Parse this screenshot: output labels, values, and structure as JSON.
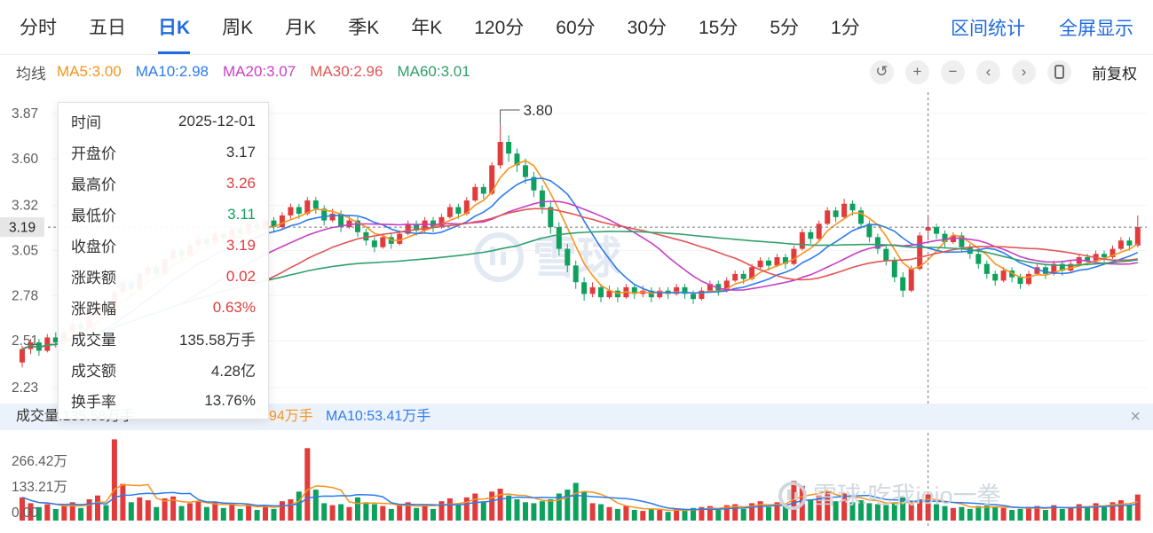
{
  "accent": "#1f6be0",
  "toolbar": {
    "tabs": [
      {
        "id": "timeline",
        "label": "分时",
        "active": false
      },
      {
        "id": "five-day",
        "label": "五日",
        "active": false
      },
      {
        "id": "daily-k",
        "label": "日K",
        "active": true
      },
      {
        "id": "weekly-k",
        "label": "周K",
        "active": false
      },
      {
        "id": "monthly-k",
        "label": "月K",
        "active": false
      },
      {
        "id": "quarterly-k",
        "label": "季K",
        "active": false
      },
      {
        "id": "yearly-k",
        "label": "年K",
        "active": false
      },
      {
        "id": "120min",
        "label": "120分",
        "active": false
      },
      {
        "id": "60min",
        "label": "60分",
        "active": false
      },
      {
        "id": "30min",
        "label": "30分",
        "active": false
      },
      {
        "id": "15min",
        "label": "15分",
        "active": false
      },
      {
        "id": "5min",
        "label": "5分",
        "active": false
      },
      {
        "id": "1min",
        "label": "1分",
        "active": false
      }
    ],
    "links": [
      {
        "id": "range-stats",
        "label": "区间统计"
      },
      {
        "id": "fullscreen",
        "label": "全屏显示"
      }
    ]
  },
  "legend": {
    "title": "均线",
    "mas": [
      {
        "label": "MA5:3.00",
        "color": "#f7941d"
      },
      {
        "label": "MA10:2.98",
        "color": "#2c7bee"
      },
      {
        "label": "MA20:3.07",
        "color": "#c73ec7"
      },
      {
        "label": "MA30:2.96",
        "color": "#e05555"
      },
      {
        "label": "MA60:3.01",
        "color": "#2fa06a"
      }
    ],
    "icons": [
      {
        "name": "undo-icon",
        "glyph": "↺"
      },
      {
        "name": "zoom-in-icon",
        "glyph": "+"
      },
      {
        "name": "zoom-out-icon",
        "glyph": "−"
      },
      {
        "name": "scroll-left-icon",
        "glyph": "‹"
      },
      {
        "name": "scroll-right-icon",
        "glyph": "›"
      },
      {
        "name": "mobile-view-icon",
        "glyph": "phone"
      }
    ],
    "adjust_label": "前复权"
  },
  "tooltip": {
    "rows": [
      {
        "label": "时间",
        "value": "2025-12-01",
        "color": "#333333"
      },
      {
        "label": "开盘价",
        "value": "3.17",
        "color": "#333333"
      },
      {
        "label": "最高价",
        "value": "3.26",
        "color": "#e03b3b"
      },
      {
        "label": "最低价",
        "value": "3.11",
        "color": "#0ea15d"
      },
      {
        "label": "收盘价",
        "value": "3.19",
        "color": "#e03b3b"
      },
      {
        "label": "涨跌额",
        "value": "0.02",
        "color": "#e03b3b"
      },
      {
        "label": "涨跌幅",
        "value": "0.63%",
        "color": "#e03b3b"
      },
      {
        "label": "成交量",
        "value": "135.58万手",
        "color": "#333333"
      },
      {
        "label": "成交额",
        "value": "4.28亿",
        "color": "#333333"
      },
      {
        "label": "换手率",
        "value": "13.76%",
        "color": "#333333"
      }
    ]
  },
  "volume_header": {
    "volume_label": "成交量:135.58万手",
    "ma5_fragment": "94万手",
    "ma10_label": "MA10:53.41万手",
    "close_glyph": "×"
  },
  "watermarks": {
    "center": "雪球",
    "corner": "雪球:吃我ioio一拳"
  },
  "chart_data": {
    "type": "candlestick",
    "period": "日K",
    "adjust": "前复权",
    "colors": {
      "up": "#e23b3c",
      "down": "#0ea15d",
      "watermark_center": "#e3e9f3",
      "watermark_corner": "#cfd5de",
      "crosshair": "#777777",
      "axis_text": "#5c5c5c"
    },
    "y_axis": {
      "ticks": [
        3.87,
        3.6,
        3.32,
        3.05,
        2.78,
        2.51,
        2.23
      ],
      "crosshair_price": 3.19,
      "crosshair_label": "3.19"
    },
    "volume_axis": {
      "ticks": [
        {
          "value": 266.42,
          "label": "266.42万"
        },
        {
          "value": 133.21,
          "label": "133.21万"
        },
        {
          "value": 0,
          "label": "0.00"
        }
      ],
      "unit": "万手"
    },
    "peak_annotation": {
      "index": 57,
      "price": 3.8,
      "label": "3.80"
    },
    "crosshair_index": 108,
    "selected_candle": {
      "date": "2025-12-01",
      "open": 3.17,
      "high": 3.26,
      "low": 3.11,
      "close": 3.19,
      "change": 0.02,
      "change_pct": "0.63%",
      "volume": "135.58万手",
      "amount": "4.28亿",
      "turnover": "13.76%"
    },
    "ma": {
      "windows": [
        5,
        10,
        20,
        30,
        60
      ],
      "colors": [
        "#f7941d",
        "#2c7bee",
        "#c73ec7",
        "#e05555",
        "#2fa06a"
      ],
      "current_labels": [
        "MA5:3.00",
        "MA10:2.98",
        "MA20:3.07",
        "MA30:2.96",
        "MA60:3.01"
      ]
    },
    "volume_ma": {
      "windows": [
        5,
        10
      ],
      "colors": [
        "#f7941d",
        "#2c7bee"
      ],
      "current_labels": [
        "94万手",
        "MA10:53.41万手"
      ]
    },
    "candle_format": [
      "open",
      "high",
      "low",
      "close",
      "volume_wanshou"
    ],
    "candles": [
      [
        2.38,
        2.48,
        2.35,
        2.46,
        120
      ],
      [
        2.46,
        2.52,
        2.43,
        2.5,
        90
      ],
      [
        2.5,
        2.52,
        2.42,
        2.45,
        70
      ],
      [
        2.45,
        2.55,
        2.44,
        2.53,
        85
      ],
      [
        2.53,
        2.56,
        2.47,
        2.5,
        60
      ],
      [
        2.5,
        2.58,
        2.49,
        2.56,
        75
      ],
      [
        2.56,
        2.63,
        2.54,
        2.61,
        95
      ],
      [
        2.61,
        2.63,
        2.55,
        2.58,
        65
      ],
      [
        2.58,
        2.68,
        2.57,
        2.66,
        110
      ],
      [
        2.66,
        2.75,
        2.64,
        2.72,
        130
      ],
      [
        2.72,
        2.74,
        2.66,
        2.69,
        80
      ],
      [
        2.69,
        2.82,
        2.68,
        2.8,
        420
      ],
      [
        2.8,
        2.89,
        2.78,
        2.86,
        190
      ],
      [
        2.86,
        2.88,
        2.79,
        2.82,
        95
      ],
      [
        2.82,
        2.93,
        2.81,
        2.91,
        120
      ],
      [
        2.91,
        2.98,
        2.89,
        2.95,
        105
      ],
      [
        2.95,
        2.97,
        2.88,
        2.91,
        70
      ],
      [
        2.91,
        3.02,
        2.9,
        3.0,
        115
      ],
      [
        3.0,
        3.08,
        2.98,
        3.05,
        125
      ],
      [
        3.05,
        3.07,
        2.99,
        3.02,
        75
      ],
      [
        3.02,
        3.1,
        3.01,
        3.08,
        90
      ],
      [
        3.08,
        3.15,
        3.06,
        3.12,
        100
      ],
      [
        3.12,
        3.14,
        3.06,
        3.09,
        70
      ],
      [
        3.09,
        3.17,
        3.08,
        3.15,
        95
      ],
      [
        3.15,
        3.17,
        3.09,
        3.12,
        65
      ],
      [
        3.12,
        3.2,
        3.11,
        3.18,
        90
      ],
      [
        3.18,
        3.2,
        3.12,
        3.15,
        60
      ],
      [
        3.15,
        3.23,
        3.14,
        3.21,
        85
      ],
      [
        3.21,
        3.23,
        3.15,
        3.18,
        55
      ],
      [
        3.18,
        3.25,
        3.17,
        3.23,
        80
      ],
      [
        3.23,
        3.25,
        3.16,
        3.19,
        60
      ],
      [
        3.19,
        3.28,
        3.18,
        3.26,
        100
      ],
      [
        3.26,
        3.33,
        3.24,
        3.31,
        110
      ],
      [
        3.31,
        3.33,
        3.24,
        3.27,
        150
      ],
      [
        3.27,
        3.37,
        3.26,
        3.35,
        375
      ],
      [
        3.35,
        3.37,
        3.27,
        3.3,
        160
      ],
      [
        3.3,
        3.32,
        3.2,
        3.23,
        90
      ],
      [
        3.23,
        3.3,
        3.22,
        3.27,
        80
      ],
      [
        3.27,
        3.29,
        3.16,
        3.19,
        85
      ],
      [
        3.19,
        3.26,
        3.18,
        3.23,
        70
      ],
      [
        3.23,
        3.25,
        3.13,
        3.16,
        120
      ],
      [
        3.16,
        3.18,
        3.08,
        3.11,
        95
      ],
      [
        3.11,
        3.13,
        3.04,
        3.07,
        85
      ],
      [
        3.07,
        3.15,
        3.06,
        3.13,
        75
      ],
      [
        3.13,
        3.15,
        3.06,
        3.09,
        60
      ],
      [
        3.09,
        3.17,
        3.08,
        3.15,
        80
      ],
      [
        3.15,
        3.23,
        3.14,
        3.21,
        95
      ],
      [
        3.21,
        3.23,
        3.14,
        3.17,
        65
      ],
      [
        3.17,
        3.25,
        3.16,
        3.23,
        85
      ],
      [
        3.23,
        3.25,
        3.16,
        3.19,
        60
      ],
      [
        3.19,
        3.27,
        3.18,
        3.25,
        100
      ],
      [
        3.25,
        3.33,
        3.24,
        3.31,
        115
      ],
      [
        3.31,
        3.33,
        3.24,
        3.27,
        80
      ],
      [
        3.27,
        3.37,
        3.26,
        3.35,
        120
      ],
      [
        3.35,
        3.45,
        3.34,
        3.43,
        140
      ],
      [
        3.43,
        3.45,
        3.36,
        3.39,
        100
      ],
      [
        3.39,
        3.58,
        3.38,
        3.56,
        150
      ],
      [
        3.56,
        3.8,
        3.54,
        3.7,
        165
      ],
      [
        3.7,
        3.74,
        3.58,
        3.63,
        130
      ],
      [
        3.63,
        3.66,
        3.52,
        3.56,
        110
      ],
      [
        3.56,
        3.6,
        3.45,
        3.49,
        95
      ],
      [
        3.49,
        3.52,
        3.37,
        3.41,
        90
      ],
      [
        3.41,
        3.44,
        3.27,
        3.31,
        100
      ],
      [
        3.31,
        3.34,
        3.15,
        3.19,
        110
      ],
      [
        3.19,
        3.22,
        3.02,
        3.06,
        140
      ],
      [
        3.06,
        3.09,
        2.92,
        2.96,
        160
      ],
      [
        2.96,
        2.99,
        2.82,
        2.86,
        195
      ],
      [
        2.86,
        2.89,
        2.75,
        2.79,
        150
      ],
      [
        2.79,
        2.86,
        2.77,
        2.83,
        90
      ],
      [
        2.83,
        2.85,
        2.74,
        2.77,
        85
      ],
      [
        2.77,
        2.84,
        2.76,
        2.81,
        70
      ],
      [
        2.81,
        2.83,
        2.74,
        2.77,
        60
      ],
      [
        2.77,
        2.85,
        2.76,
        2.83,
        75
      ],
      [
        2.83,
        2.85,
        2.76,
        2.79,
        55
      ],
      [
        2.79,
        2.84,
        2.77,
        2.81,
        50
      ],
      [
        2.81,
        2.83,
        2.74,
        2.77,
        60
      ],
      [
        2.77,
        2.83,
        2.76,
        2.81,
        55
      ],
      [
        2.81,
        2.83,
        2.76,
        2.79,
        45
      ],
      [
        2.79,
        2.85,
        2.78,
        2.83,
        60
      ],
      [
        2.83,
        2.85,
        2.76,
        2.79,
        50
      ],
      [
        2.79,
        2.81,
        2.73,
        2.76,
        65
      ],
      [
        2.76,
        2.83,
        2.75,
        2.81,
        70
      ],
      [
        2.81,
        2.87,
        2.8,
        2.85,
        75
      ],
      [
        2.85,
        2.87,
        2.78,
        2.81,
        55
      ],
      [
        2.81,
        2.89,
        2.8,
        2.87,
        80
      ],
      [
        2.87,
        2.93,
        2.86,
        2.91,
        85
      ],
      [
        2.91,
        2.93,
        2.85,
        2.88,
        60
      ],
      [
        2.88,
        2.97,
        2.87,
        2.95,
        90
      ],
      [
        2.95,
        3.01,
        2.94,
        2.99,
        100
      ],
      [
        2.99,
        3.01,
        2.93,
        2.96,
        70
      ],
      [
        2.96,
        3.03,
        2.95,
        3.01,
        95
      ],
      [
        3.01,
        3.03,
        2.94,
        2.97,
        75
      ],
      [
        2.97,
        3.08,
        2.96,
        3.06,
        205
      ],
      [
        3.06,
        3.18,
        3.05,
        3.16,
        180
      ],
      [
        3.16,
        3.18,
        3.09,
        3.12,
        110
      ],
      [
        3.12,
        3.23,
        3.11,
        3.21,
        130
      ],
      [
        3.21,
        3.31,
        3.2,
        3.29,
        150
      ],
      [
        3.29,
        3.31,
        3.22,
        3.25,
        100
      ],
      [
        3.25,
        3.36,
        3.24,
        3.33,
        140
      ],
      [
        3.33,
        3.35,
        3.26,
        3.29,
        95
      ],
      [
        3.29,
        3.31,
        3.18,
        3.21,
        105
      ],
      [
        3.21,
        3.23,
        3.1,
        3.13,
        90
      ],
      [
        3.13,
        3.15,
        3.03,
        3.06,
        85
      ],
      [
        3.06,
        3.08,
        2.96,
        2.99,
        80
      ],
      [
        2.99,
        3.01,
        2.86,
        2.89,
        95
      ],
      [
        2.89,
        2.92,
        2.77,
        2.81,
        120
      ],
      [
        2.81,
        2.96,
        2.8,
        2.94,
        90
      ],
      [
        2.94,
        3.16,
        2.93,
        3.14,
        110
      ],
      [
        3.17,
        3.26,
        3.11,
        3.19,
        136
      ],
      [
        3.19,
        3.21,
        3.12,
        3.15,
        85
      ],
      [
        3.15,
        3.17,
        3.07,
        3.1,
        75
      ],
      [
        3.1,
        3.16,
        3.09,
        3.14,
        65
      ],
      [
        3.14,
        3.16,
        3.04,
        3.07,
        70
      ],
      [
        3.07,
        3.09,
        3.0,
        3.03,
        60
      ],
      [
        3.03,
        3.05,
        2.94,
        2.97,
        75
      ],
      [
        2.97,
        2.99,
        2.88,
        2.91,
        80
      ],
      [
        2.91,
        2.93,
        2.84,
        2.87,
        70
      ],
      [
        2.87,
        2.95,
        2.86,
        2.93,
        65
      ],
      [
        2.93,
        2.95,
        2.86,
        2.89,
        55
      ],
      [
        2.89,
        2.91,
        2.82,
        2.85,
        60
      ],
      [
        2.85,
        2.93,
        2.84,
        2.91,
        70
      ],
      [
        2.91,
        2.97,
        2.9,
        2.95,
        75
      ],
      [
        2.95,
        2.97,
        2.88,
        2.91,
        55
      ],
      [
        2.91,
        2.99,
        2.9,
        2.97,
        80
      ],
      [
        2.97,
        2.99,
        2.9,
        2.93,
        60
      ],
      [
        2.93,
        2.99,
        2.92,
        2.97,
        70
      ],
      [
        2.97,
        3.03,
        2.96,
        3.01,
        85
      ],
      [
        3.01,
        3.03,
        2.96,
        2.99,
        65
      ],
      [
        2.99,
        3.05,
        2.98,
        3.03,
        90
      ],
      [
        3.03,
        3.05,
        2.98,
        3.01,
        70
      ],
      [
        3.01,
        3.08,
        3.0,
        3.06,
        95
      ],
      [
        3.06,
        3.13,
        3.05,
        3.11,
        105
      ],
      [
        3.11,
        3.13,
        3.05,
        3.08,
        80
      ],
      [
        3.08,
        3.26,
        3.07,
        3.19,
        135
      ]
    ]
  }
}
